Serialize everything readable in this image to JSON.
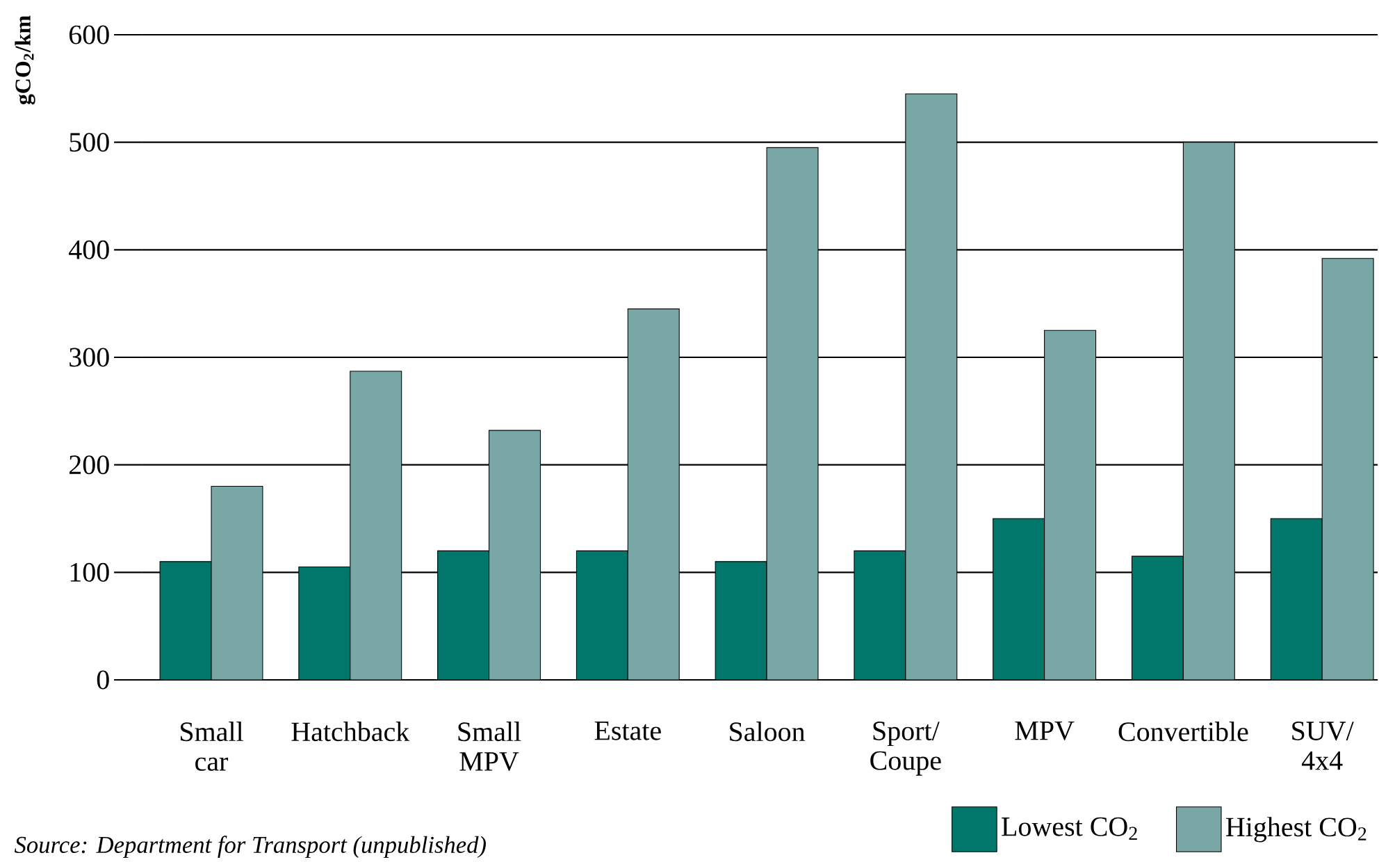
{
  "chart_data": {
    "type": "bar",
    "categories": [
      "Small car",
      "Hatchback",
      "Small MPV",
      "Estate",
      "Saloon",
      "Sport/ Coupe",
      "MPV",
      "Convertible",
      "SUV/ 4x4"
    ],
    "series": [
      {
        "name": "Lowest CO$_{2}$",
        "color": "#00776a",
        "values": [
          110,
          105,
          120,
          120,
          110,
          120,
          150,
          115,
          150
        ]
      },
      {
        "name": "Highest CO$_{2}$",
        "color": "#78a7a6",
        "values": [
          180,
          287,
          232,
          345,
          495,
          545,
          325,
          500,
          392
        ]
      }
    ],
    "ylabel": "gCO$_{2}$/km",
    "ylim": [
      0,
      600
    ],
    "yticks": [
      0,
      100,
      200,
      300,
      400,
      500,
      600
    ],
    "grid": "y",
    "legend": "bottom right",
    "annotations": [
      "Source: Department for Transport (unpublished)"
    ]
  }
}
